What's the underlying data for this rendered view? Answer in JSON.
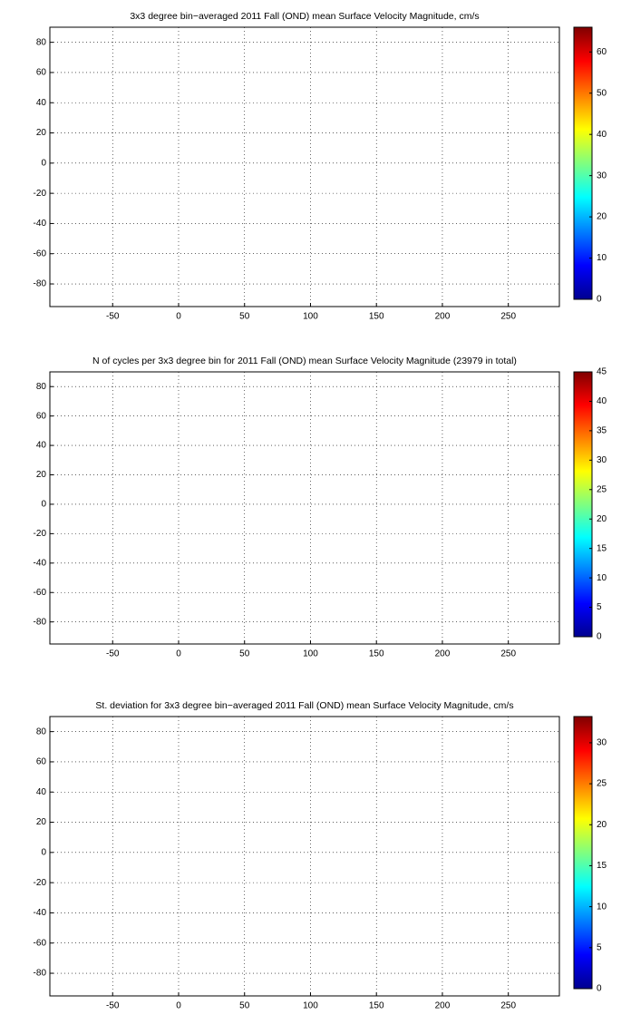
{
  "chart_data": [
    {
      "type": "heatmap",
      "title": "3x3 degree bin−averaged 2011 Fall (OND) mean Surface Velocity Magnitude, cm/s",
      "xlim": [
        -97.6,
        288.7
      ],
      "ylim": [
        -95,
        90
      ],
      "xticks": [
        -50,
        0,
        50,
        100,
        150,
        200,
        250
      ],
      "yticks": [
        -80,
        -60,
        -40,
        -20,
        0,
        20,
        40,
        60,
        80
      ],
      "grid": true,
      "colormap": "jet",
      "clim": [
        0,
        66
      ],
      "cticks": [
        0,
        10,
        20,
        30,
        40,
        50,
        60
      ]
    },
    {
      "type": "heatmap",
      "title": "N of cycles per 3x3 degree bin for 2011 Fall (OND) mean Surface Velocity Magnitude (23979 in total)",
      "xlim": [
        -97.6,
        288.7
      ],
      "ylim": [
        -95,
        90
      ],
      "xticks": [
        -50,
        0,
        50,
        100,
        150,
        200,
        250
      ],
      "yticks": [
        -80,
        -60,
        -40,
        -20,
        0,
        20,
        40,
        60,
        80
      ],
      "grid": true,
      "colormap": "jet",
      "clim": [
        0,
        45
      ],
      "cticks": [
        0,
        5,
        10,
        15,
        20,
        25,
        30,
        35,
        40,
        45
      ]
    },
    {
      "type": "heatmap",
      "title": "St. deviation for 3x3 degree bin−averaged 2011 Fall (OND) mean Surface Velocity Magnitude, cm/s",
      "xlim": [
        -97.6,
        288.7
      ],
      "ylim": [
        -95,
        90
      ],
      "xticks": [
        -50,
        0,
        50,
        100,
        150,
        200,
        250
      ],
      "yticks": [
        -80,
        -60,
        -40,
        -20,
        0,
        20,
        40,
        60,
        80
      ],
      "grid": true,
      "colormap": "jet",
      "clim": [
        0,
        33.2
      ],
      "cticks": [
        0,
        5,
        10,
        15,
        20,
        25,
        30
      ]
    }
  ]
}
